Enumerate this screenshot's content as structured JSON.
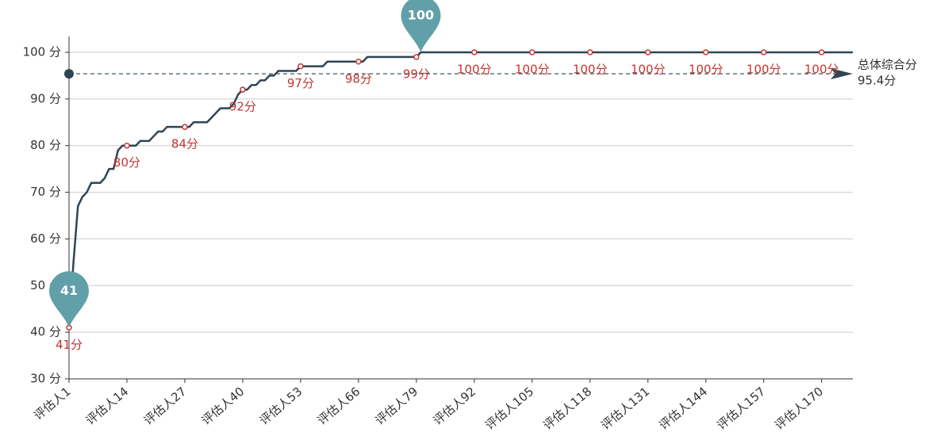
{
  "chart_data": {
    "type": "line",
    "categories": [
      "评估人1",
      null,
      null,
      null,
      null,
      null,
      null,
      null,
      null,
      null,
      null,
      null,
      null,
      "评估人14",
      null,
      null,
      null,
      null,
      null,
      null,
      null,
      null,
      null,
      null,
      null,
      null,
      "评估人27",
      null,
      null,
      null,
      null,
      null,
      null,
      null,
      null,
      null,
      null,
      null,
      null,
      "评估人40",
      null,
      null,
      null,
      null,
      null,
      null,
      null,
      null,
      null,
      null,
      null,
      null,
      "评估人53",
      null,
      null,
      null,
      null,
      null,
      null,
      null,
      null,
      null,
      null,
      null,
      null,
      "评估人66",
      null,
      null,
      null,
      null,
      null,
      null,
      null,
      null,
      null,
      null,
      null,
      null,
      "评估人79",
      null,
      null,
      null,
      null,
      null,
      null,
      null,
      null,
      null,
      null,
      null,
      null,
      "评估人92",
      null,
      null,
      null,
      null,
      null,
      null,
      null,
      null,
      null,
      null,
      null,
      null,
      "评估人105",
      null,
      null,
      null,
      null,
      null,
      null,
      null,
      null,
      null,
      null,
      null,
      null,
      "评估人118",
      null,
      null,
      null,
      null,
      null,
      null,
      null,
      null,
      null,
      null,
      null,
      null,
      "评估人131",
      null,
      null,
      null,
      null,
      null,
      null,
      null,
      null,
      null,
      null,
      null,
      null,
      "评估人144",
      null,
      null,
      null,
      null,
      null,
      null,
      null,
      null,
      null,
      null,
      null,
      null,
      "评估人157",
      null,
      null,
      null,
      null,
      null,
      null,
      null,
      null,
      null,
      null,
      null,
      null,
      "评估人170",
      null,
      null,
      null,
      null,
      null,
      null,
      null
    ],
    "values": [
      41,
      55,
      67,
      69,
      70,
      72,
      72,
      72,
      73,
      75,
      75,
      79,
      80,
      80,
      80,
      80,
      81,
      81,
      81,
      82,
      83,
      83,
      84,
      84,
      84,
      84,
      84,
      84,
      85,
      85,
      85,
      85,
      86,
      87,
      88,
      88,
      88,
      89,
      91,
      92,
      92,
      93,
      93,
      94,
      94,
      95,
      95,
      96,
      96,
      96,
      96,
      96,
      97,
      97,
      97,
      97,
      97,
      97,
      98,
      98,
      98,
      98,
      98,
      98,
      98,
      98,
      98,
      99,
      99,
      99,
      99,
      99,
      99,
      99,
      99,
      99,
      99,
      99,
      99,
      100,
      100,
      100,
      100,
      100,
      100,
      100,
      100,
      100,
      100,
      100,
      100,
      100,
      100,
      100,
      100,
      100,
      100,
      100,
      100,
      100,
      100,
      100,
      100,
      100,
      100,
      100,
      100,
      100,
      100,
      100,
      100,
      100,
      100,
      100,
      100,
      100,
      100,
      100,
      100,
      100,
      100,
      100,
      100,
      100,
      100,
      100,
      100,
      100,
      100,
      100,
      100,
      100,
      100,
      100,
      100,
      100,
      100,
      100,
      100,
      100,
      100,
      100,
      100,
      100,
      100,
      100,
      100,
      100,
      100,
      100,
      100,
      100,
      100,
      100,
      100,
      100,
      100,
      100,
      100,
      100,
      100,
      100,
      100,
      100,
      100,
      100,
      100,
      100,
      100,
      100,
      100,
      100,
      100,
      100,
      100,
      100,
      100
    ],
    "value_labels": [
      "41分",
      null,
      null,
      null,
      null,
      null,
      null,
      null,
      null,
      null,
      null,
      null,
      null,
      "80分",
      null,
      null,
      null,
      null,
      null,
      null,
      null,
      null,
      null,
      null,
      null,
      null,
      "84分",
      null,
      null,
      null,
      null,
      null,
      null,
      null,
      null,
      null,
      null,
      null,
      null,
      "92分",
      null,
      null,
      null,
      null,
      null,
      null,
      null,
      null,
      null,
      null,
      null,
      null,
      "97分",
      null,
      null,
      null,
      null,
      null,
      null,
      null,
      null,
      null,
      null,
      null,
      null,
      "98分",
      null,
      null,
      null,
      null,
      null,
      null,
      null,
      null,
      null,
      null,
      null,
      null,
      "99分",
      null,
      null,
      null,
      null,
      null,
      null,
      null,
      null,
      null,
      null,
      null,
      null,
      "100分",
      null,
      null,
      null,
      null,
      null,
      null,
      null,
      null,
      null,
      null,
      null,
      null,
      "100分",
      null,
      null,
      null,
      null,
      null,
      null,
      null,
      null,
      null,
      null,
      null,
      null,
      "100分",
      null,
      null,
      null,
      null,
      null,
      null,
      null,
      null,
      null,
      null,
      null,
      null,
      "100分",
      null,
      null,
      null,
      null,
      null,
      null,
      null,
      null,
      null,
      null,
      null,
      null,
      "100分",
      null,
      null,
      null,
      null,
      null,
      null,
      null,
      null,
      null,
      null,
      null,
      null,
      "100分",
      null,
      null,
      null,
      null,
      null,
      null,
      null,
      null,
      null,
      null,
      null,
      null,
      "100分",
      null,
      null,
      null,
      null,
      null,
      null,
      null
    ],
    "color": "#2f4554",
    "label_color": "#c23531",
    "pin_color": "#61a0a8",
    "ylim": [
      30,
      100
    ],
    "yticks": [
      {
        "value": 30,
        "label": "30 分"
      },
      {
        "value": 40,
        "label": "40 分"
      },
      {
        "value": 50,
        "label": "50 分"
      },
      {
        "value": 60,
        "label": "60 分"
      },
      {
        "value": 70,
        "label": "70 分"
      },
      {
        "value": 80,
        "label": "80 分"
      },
      {
        "value": 90,
        "label": "90 分"
      },
      {
        "value": 100,
        "label": "100 分"
      }
    ],
    "grid": true,
    "mark_points": [
      {
        "value": 41
      },
      {
        "value": 100
      }
    ],
    "mark_line": {
      "name": "总体综合分",
      "value": 95.4,
      "value_label": "95.4分"
    }
  }
}
